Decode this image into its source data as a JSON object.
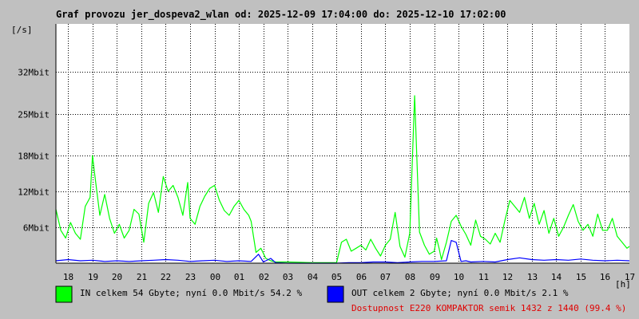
{
  "colors": {
    "background": "#c0c0c0",
    "plot_bg": "#ffffff",
    "grid": "#000000",
    "in_series": "#00ff00",
    "out_series": "#0000ff",
    "availability": "#e00000"
  },
  "chart_data": {
    "type": "line",
    "title": "Graf provozu jer_dospeva2_wlan od: 2025-12-09 17:04:00 do: 2025-12-10 17:02:00",
    "ylabel": "[/s]",
    "xlabel": "[h]",
    "ylim": [
      0,
      40
    ],
    "y_ticks": [
      {
        "label": "6Mbit",
        "value": 6
      },
      {
        "label": "12Mbit",
        "value": 12
      },
      {
        "label": "18Mbit",
        "value": 18
      },
      {
        "label": "25Mbit",
        "value": 25
      },
      {
        "label": "32Mbit",
        "value": 32
      }
    ],
    "x_ticks": [
      "18",
      "19",
      "20",
      "21",
      "22",
      "23",
      "00",
      "01",
      "02",
      "03",
      "04",
      "05",
      "06",
      "07",
      "08",
      "09",
      "10",
      "11",
      "12",
      "13",
      "14",
      "15",
      "16",
      "17"
    ],
    "grid": true,
    "series": [
      {
        "name": "IN",
        "color": "#00ff00",
        "x": [
          17.5,
          17.7,
          17.9,
          18.1,
          18.3,
          18.5,
          18.7,
          18.9,
          19.0,
          19.1,
          19.3,
          19.5,
          19.7,
          19.9,
          20.1,
          20.3,
          20.5,
          20.7,
          20.9,
          21.1,
          21.3,
          21.5,
          21.7,
          21.9,
          22.1,
          22.3,
          22.5,
          22.7,
          22.9,
          23.0,
          23.2,
          23.4,
          23.6,
          23.8,
          24.0,
          24.2,
          24.4,
          24.6,
          24.8,
          25.0,
          25.2,
          25.4,
          25.5,
          25.7,
          25.9,
          26.1,
          26.3,
          26.5,
          27.0,
          28.0,
          29.0,
          29.2,
          29.4,
          29.6,
          29.8,
          30.0,
          30.2,
          30.4,
          30.6,
          30.8,
          31.0,
          31.2,
          31.4,
          31.6,
          31.8,
          32.0,
          32.2,
          32.4,
          32.6,
          32.8,
          33.0,
          33.1,
          33.2,
          33.3,
          33.5,
          33.7,
          33.9,
          34.1,
          34.3,
          34.5,
          34.7,
          34.9,
          35.1,
          35.3,
          35.5,
          35.7,
          35.9,
          36.1,
          36.3,
          36.5,
          36.7,
          36.9,
          37.1,
          37.3,
          37.5,
          37.7,
          37.9,
          38.1,
          38.3,
          38.5,
          38.7,
          38.9,
          39.1,
          39.3,
          39.5,
          39.7,
          39.9,
          40.1,
          40.3,
          40.5,
          40.7,
          40.9,
          41.0
        ],
        "values": [
          9.0,
          5.5,
          4.2,
          6.8,
          5.0,
          4.0,
          9.5,
          11.0,
          18.0,
          14.5,
          8.0,
          11.5,
          7.5,
          5.0,
          6.5,
          4.2,
          5.5,
          9.0,
          8.2,
          3.5,
          10.0,
          11.8,
          8.5,
          14.5,
          12.0,
          13.0,
          11.0,
          8.0,
          13.5,
          7.5,
          6.5,
          9.5,
          11.2,
          12.5,
          13.0,
          10.5,
          8.8,
          8.0,
          9.5,
          10.5,
          9.0,
          8.0,
          7.0,
          1.8,
          2.5,
          0.8,
          0.4,
          0.2,
          0.2,
          0.1,
          0.1,
          3.5,
          4.0,
          2.0,
          2.5,
          3.0,
          2.2,
          4.0,
          2.5,
          1.2,
          3.0,
          4.0,
          8.5,
          2.8,
          1.0,
          5.0,
          28.0,
          5.2,
          3.0,
          1.5,
          2.0,
          4.2,
          2.5,
          0.6,
          3.5,
          7.0,
          8.0,
          6.2,
          4.8,
          3.0,
          7.2,
          4.5,
          4.0,
          3.2,
          5.0,
          3.5,
          7.2,
          10.5,
          9.5,
          8.5,
          11.0,
          7.5,
          10.0,
          6.5,
          8.8,
          5.0,
          7.5,
          4.5,
          6.0,
          8.0,
          9.8,
          7.0,
          5.5,
          6.5,
          4.5,
          8.2,
          5.5,
          5.5,
          7.5,
          4.5,
          3.5,
          2.5,
          2.8
        ]
      },
      {
        "name": "OUT",
        "color": "#0000ff",
        "x": [
          17.5,
          18.0,
          18.5,
          19.0,
          19.5,
          20.0,
          20.5,
          21.0,
          21.5,
          22.0,
          22.5,
          23.0,
          23.5,
          24.0,
          24.5,
          25.0,
          25.5,
          25.8,
          26.0,
          26.3,
          26.5,
          27.0,
          28.0,
          29.0,
          29.5,
          30.0,
          30.5,
          31.0,
          31.5,
          32.0,
          32.5,
          33.0,
          33.5,
          33.7,
          33.9,
          34.1,
          34.3,
          34.5,
          35.0,
          35.5,
          36.0,
          36.5,
          37.0,
          37.5,
          38.0,
          38.5,
          39.0,
          39.5,
          40.0,
          40.5,
          41.0
        ],
        "values": [
          0.4,
          0.6,
          0.4,
          0.5,
          0.3,
          0.4,
          0.3,
          0.4,
          0.5,
          0.6,
          0.5,
          0.3,
          0.4,
          0.5,
          0.3,
          0.4,
          0.3,
          1.5,
          0.2,
          0.8,
          0.1,
          0.0,
          0.0,
          0.0,
          0.1,
          0.1,
          0.2,
          0.2,
          0.1,
          0.2,
          0.3,
          0.3,
          0.4,
          3.8,
          3.5,
          0.3,
          0.4,
          0.2,
          0.3,
          0.2,
          0.6,
          0.9,
          0.6,
          0.5,
          0.6,
          0.5,
          0.7,
          0.5,
          0.4,
          0.5,
          0.4
        ]
      }
    ]
  },
  "legend": {
    "in_text": "IN celkem 54 Gbyte; nyní   0.0 Mbit/s 54.2 %",
    "out_text": "OUT celkem 2 Gbyte; nyní   0.0 Mbit/s 2.1 %",
    "availability_text": "Dostupnost E220 KOMPAKTOR semik 1432 z 1440 (99.4 %)"
  }
}
